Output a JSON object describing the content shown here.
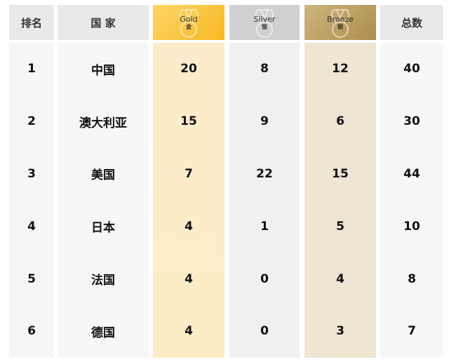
{
  "headers": {
    "rank": "排名",
    "country": "国 家",
    "gold_en": "Gold",
    "gold_cn": "金",
    "silver_en": "Silver",
    "silver_cn": "银",
    "bronze_en": "Bronze",
    "bronze_cn": "铜",
    "total": "总数"
  },
  "icons": {
    "gold": "medal-icon",
    "silver": "medal-icon",
    "bronze": "medal-icon"
  },
  "colors": {
    "gold": "#fbc83f",
    "silver": "#d0d0d0",
    "bronze": "#bea066"
  },
  "rows": [
    {
      "rank": "1",
      "country": "中国",
      "gold": "20",
      "silver": "8",
      "bronze": "12",
      "total": "40"
    },
    {
      "rank": "2",
      "country": "澳大利亚",
      "gold": "15",
      "silver": "9",
      "bronze": "6",
      "total": "30"
    },
    {
      "rank": "3",
      "country": "美国",
      "gold": "7",
      "silver": "22",
      "bronze": "15",
      "total": "44"
    },
    {
      "rank": "4",
      "country": "日本",
      "gold": "4",
      "silver": "1",
      "bronze": "5",
      "total": "10"
    },
    {
      "rank": "5",
      "country": "法国",
      "gold": "4",
      "silver": "0",
      "bronze": "4",
      "total": "8"
    },
    {
      "rank": "6",
      "country": "德国",
      "gold": "4",
      "silver": "0",
      "bronze": "3",
      "total": "7"
    }
  ]
}
